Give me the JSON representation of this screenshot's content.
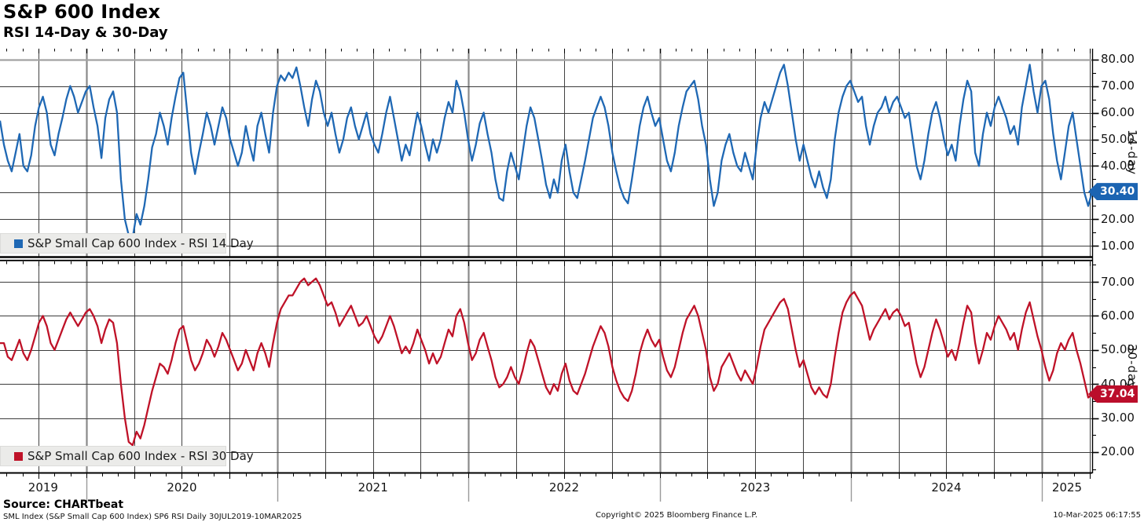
{
  "header": {
    "title": "S&P 600 Index",
    "subtitle": "RSI 14-Day & 30-Day"
  },
  "colors": {
    "rsi14_line": "#1f68b4",
    "rsi14_tag": "#1b64b2",
    "rsi30_line": "#bf1228",
    "rsi30_tag": "#bb0e2b",
    "grid_horizontal": "#3c3c3c",
    "grid_quarter": "#424242",
    "grid_year": "#8a8a8a",
    "grid_top_line": "#a2a2a2",
    "axis": "#000000",
    "legend_bg": "#ebebe9"
  },
  "x_axis": {
    "years": [
      "2019",
      "2020",
      "2021",
      "2022",
      "2023",
      "2024",
      "2025"
    ],
    "year_boundaries_frac": [
      0.079,
      0.254,
      0.429,
      0.604,
      0.779,
      0.954
    ],
    "range_start": "30JUL2019",
    "range_end": "10MAR2025"
  },
  "chart_data": [
    {
      "type": "line",
      "title": "S&P Small Cap 600 Index - RSI 14 Day",
      "panel_label": "14-day",
      "color": "#1f68b4",
      "ylim": [
        6,
        84
      ],
      "yticks": [
        10,
        20,
        30,
        40,
        50,
        60,
        70,
        80
      ],
      "last_value": 30.4,
      "last_label": "30.40",
      "x_start": "30JUL2019",
      "x_end": "10MAR2025",
      "values": [
        57,
        48,
        42,
        38,
        45,
        52,
        40,
        38,
        44,
        55,
        62,
        66,
        60,
        48,
        44,
        52,
        58,
        65,
        70,
        66,
        60,
        64,
        68,
        70,
        62,
        55,
        43,
        58,
        65,
        68,
        60,
        35,
        20,
        14,
        13,
        22,
        18,
        25,
        35,
        47,
        52,
        60,
        55,
        48,
        58,
        66,
        73,
        75,
        60,
        45,
        37,
        45,
        52,
        60,
        55,
        48,
        55,
        62,
        58,
        50,
        45,
        40,
        45,
        55,
        48,
        42,
        55,
        60,
        52,
        45,
        60,
        70,
        74,
        72,
        75,
        73,
        77,
        70,
        62,
        55,
        65,
        72,
        68,
        60,
        55,
        60,
        52,
        45,
        50,
        58,
        62,
        55,
        50,
        55,
        60,
        52,
        48,
        45,
        52,
        60,
        66,
        58,
        50,
        42,
        48,
        44,
        52,
        60,
        55,
        48,
        42,
        50,
        45,
        50,
        58,
        64,
        60,
        72,
        68,
        60,
        50,
        42,
        48,
        56,
        60,
        52,
        45,
        35,
        28,
        27,
        38,
        45,
        40,
        35,
        45,
        55,
        62,
        58,
        50,
        42,
        33,
        28,
        35,
        30,
        42,
        48,
        38,
        30,
        28,
        35,
        42,
        50,
        58,
        62,
        66,
        62,
        55,
        45,
        38,
        32,
        28,
        26,
        35,
        45,
        55,
        62,
        66,
        60,
        55,
        58,
        50,
        42,
        38,
        45,
        55,
        62,
        68,
        70,
        72,
        65,
        55,
        48,
        35,
        25,
        30,
        42,
        48,
        52,
        45,
        40,
        38,
        45,
        40,
        35,
        48,
        58,
        64,
        60,
        65,
        70,
        75,
        78,
        70,
        60,
        50,
        42,
        48,
        42,
        36,
        32,
        38,
        32,
        28,
        35,
        50,
        60,
        66,
        70,
        72,
        68,
        64,
        66,
        55,
        48,
        55,
        60,
        62,
        66,
        60,
        64,
        66,
        62,
        58,
        60,
        50,
        40,
        35,
        42,
        52,
        60,
        64,
        58,
        50,
        44,
        48,
        42,
        55,
        65,
        72,
        68,
        45,
        40,
        52,
        60,
        55,
        62,
        66,
        62,
        58,
        52,
        55,
        48,
        62,
        70,
        78,
        68,
        60,
        70,
        72,
        65,
        52,
        42,
        35,
        45,
        55,
        60,
        50,
        40,
        30,
        25,
        30.4
      ]
    },
    {
      "type": "line",
      "title": "S&P Small Cap 600 Index - RSI 30 Day",
      "panel_label": "30-day",
      "color": "#bf1228",
      "ylim": [
        14,
        76
      ],
      "yticks": [
        20,
        30,
        40,
        50,
        60,
        70
      ],
      "last_value": 37.04,
      "last_label": "37.04",
      "x_start": "30JUL2019",
      "x_end": "10MAR2025",
      "values": [
        52,
        52,
        48,
        47,
        50,
        53,
        49,
        47,
        50,
        54,
        58,
        60,
        57,
        52,
        50,
        53,
        56,
        59,
        61,
        59,
        57,
        59,
        61,
        62,
        60,
        57,
        52,
        56,
        59,
        58,
        52,
        40,
        30,
        23,
        22,
        26,
        24,
        28,
        33,
        38,
        42,
        46,
        45,
        43,
        47,
        52,
        56,
        57,
        52,
        47,
        44,
        46,
        49,
        53,
        51,
        48,
        51,
        55,
        53,
        50,
        47,
        44,
        46,
        50,
        47,
        44,
        49,
        52,
        49,
        45,
        52,
        58,
        62,
        64,
        66,
        66,
        68,
        70,
        71,
        69,
        70,
        71,
        69,
        66,
        63,
        64,
        61,
        57,
        59,
        61,
        63,
        60,
        57,
        58,
        60,
        57,
        54,
        52,
        54,
        57,
        60,
        57,
        53,
        49,
        51,
        49,
        52,
        56,
        53,
        50,
        46,
        49,
        46,
        48,
        52,
        56,
        54,
        60,
        62,
        58,
        52,
        47,
        49,
        53,
        55,
        51,
        47,
        42,
        39,
        40,
        42,
        45,
        42,
        40,
        44,
        49,
        53,
        51,
        47,
        43,
        39,
        37,
        40,
        38,
        43,
        46,
        41,
        38,
        37,
        40,
        43,
        47,
        51,
        54,
        57,
        55,
        51,
        45,
        41,
        38,
        36,
        35,
        38,
        43,
        49,
        53,
        56,
        53,
        51,
        53,
        48,
        44,
        42,
        45,
        50,
        55,
        59,
        61,
        63,
        60,
        55,
        50,
        42,
        38,
        40,
        45,
        47,
        49,
        46,
        43,
        41,
        44,
        42,
        40,
        45,
        51,
        56,
        58,
        60,
        62,
        64,
        65,
        62,
        56,
        50,
        45,
        47,
        43,
        39,
        37,
        39,
        37,
        36,
        40,
        48,
        55,
        61,
        64,
        66,
        67,
        65,
        63,
        58,
        53,
        56,
        58,
        60,
        62,
        59,
        61,
        62,
        60,
        57,
        58,
        52,
        46,
        42,
        45,
        50,
        55,
        59,
        56,
        52,
        48,
        50,
        47,
        52,
        58,
        63,
        61,
        52,
        46,
        50,
        55,
        53,
        57,
        60,
        58,
        56,
        53,
        55,
        50,
        56,
        61,
        64,
        59,
        54,
        50,
        45,
        41,
        44,
        49,
        52,
        50,
        53,
        55,
        50,
        46,
        41,
        36,
        37.04
      ]
    }
  ],
  "footer": {
    "source_bold": "Source: CHARTbeat",
    "source_detail": "SML Index (S&P Small Cap 600 Index) SP6 RSI  Daily 30JUL2019-10MAR2025",
    "copyright": "Copyright© 2025 Bloomberg Finance L.P.",
    "datetime": "10-Mar-2025 06:17:55"
  }
}
